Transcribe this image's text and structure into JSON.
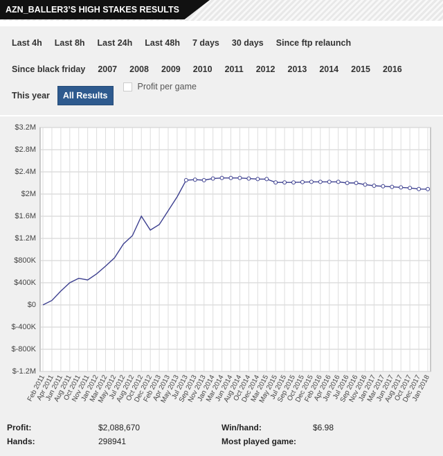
{
  "header": {
    "title": "AZN_BALLER3’S HIGH STAKES RESULTS"
  },
  "filters": [
    [
      "Last 4h",
      "Last 8h",
      "Last 24h",
      "Last 48h",
      "7 days",
      "30 days",
      "Since ftp relaunch"
    ],
    [
      "Since black friday",
      "2007",
      "2008",
      "2009",
      "2010",
      "2011",
      "2012",
      "2013",
      "2014",
      "2015",
      "2016"
    ],
    [
      "This year",
      "All Results"
    ]
  ],
  "checkbox": {
    "label": "Profit per game",
    "checked": false
  },
  "chart_data": {
    "type": "line",
    "categories": [
      "Feb 2011",
      "Apr 2011",
      "Jun 2011",
      "Aug 2011",
      "Oct 2011",
      "Nov 2011",
      "Jan 2012",
      "Mar 2012",
      "May 2012",
      "Jul 2012",
      "Aug 2012",
      "Oct 2012",
      "Dec 2012",
      "Feb 2013",
      "Apr 2013",
      "May 2013",
      "Jul 2013",
      "Sep 2013",
      "Nov 2013",
      "Jan 2014",
      "Mar 2014",
      "Jun 2014",
      "Aug 2014",
      "Oct 2014",
      "Dec 2014",
      "Mar 2015",
      "May 2015",
      "Jul 2015",
      "Sep 2015",
      "Oct 2015",
      "Dec 2015",
      "Feb 2016",
      "Apr 2016",
      "Jun 2016",
      "Jul 2016",
      "Sep 2016",
      "Nov 2016",
      "Jan 2017",
      "Mar 2017",
      "Jun 2017",
      "Aug 2017",
      "Oct 2017",
      "Dec 2017",
      "Jan 2018"
    ],
    "series": [
      {
        "name": "Profit",
        "color": "#3c3f8f",
        "values": [
          0,
          80000,
          250000,
          400000,
          480000,
          450000,
          560000,
          700000,
          850000,
          1100000,
          1250000,
          1600000,
          1350000,
          1450000,
          1700000,
          1950000,
          2250000,
          2260000,
          2250000,
          2280000,
          2290000,
          2290000,
          2290000,
          2280000,
          2270000,
          2270000,
          2210000,
          2210000,
          2210000,
          2215000,
          2220000,
          2220000,
          2220000,
          2220000,
          2200000,
          2200000,
          2170000,
          2150000,
          2140000,
          2130000,
          2120000,
          2110000,
          2090000,
          2088670
        ]
      }
    ],
    "ylim": [
      -1200000,
      3200000
    ],
    "yticks": [
      {
        "value": -1200000,
        "label": "$-1.2M"
      },
      {
        "value": -800000,
        "label": "$-800K"
      },
      {
        "value": -400000,
        "label": "$-400K"
      },
      {
        "value": 0,
        "label": "$0"
      },
      {
        "value": 400000,
        "label": "$400K"
      },
      {
        "value": 800000,
        "label": "$800K"
      },
      {
        "value": 1200000,
        "label": "$1.2M"
      },
      {
        "value": 1600000,
        "label": "$1.6M"
      },
      {
        "value": 2000000,
        "label": "$2M"
      },
      {
        "value": 2400000,
        "label": "$2.4M"
      },
      {
        "value": 2800000,
        "label": "$2.8M"
      },
      {
        "value": 3200000,
        "label": "$3.2M"
      }
    ],
    "grid": true
  },
  "stats": [
    [
      "Profit:",
      "$2,088,670",
      "Win/hand:",
      "$6.98"
    ],
    [
      "Hands:",
      "298941",
      "Most played game:",
      ""
    ]
  ]
}
